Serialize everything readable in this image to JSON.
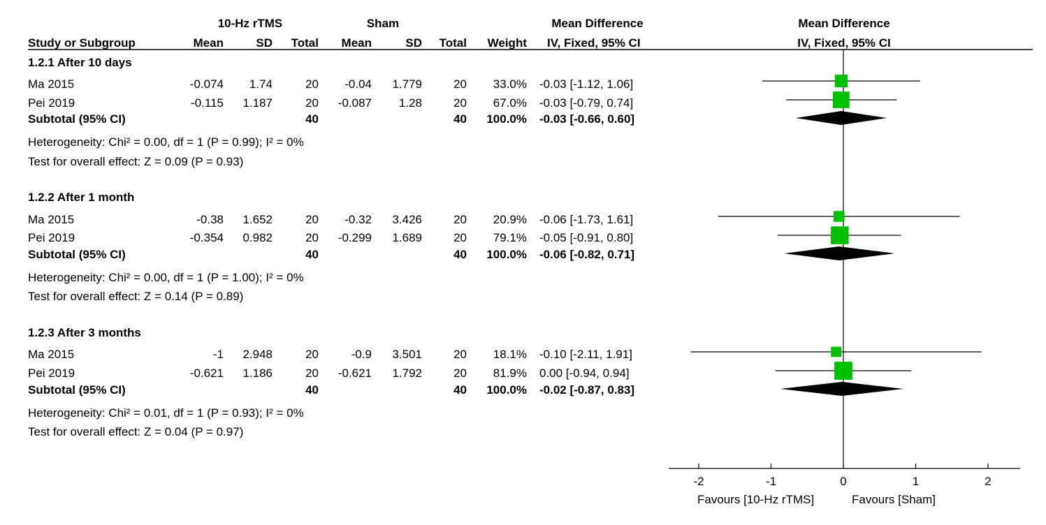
{
  "header": {
    "group1": "10-Hz rTMS",
    "group2": "Sham",
    "md_label": "Mean Difference",
    "md_method": "IV, Fixed, 95% CI",
    "plot_label": "Mean Difference",
    "plot_method": "IV, Fixed, 95% CI",
    "columns": [
      "Study or Subgroup",
      "Mean",
      "SD",
      "Total",
      "Mean",
      "SD",
      "Total",
      "Weight"
    ]
  },
  "subgroups": [
    {
      "title": "1.2.1 After 10 days",
      "studies": [
        {
          "name": "Ma 2015",
          "mean1": "-0.074",
          "sd1": "1.74",
          "n1": "20",
          "mean2": "-0.04",
          "sd2": "1.779",
          "n2": "20",
          "weight": "33.0%",
          "ci": "-0.03 [-1.12, 1.06]"
        },
        {
          "name": "Pei 2019",
          "mean1": "-0.115",
          "sd1": "1.187",
          "n1": "20",
          "mean2": "-0.087",
          "sd2": "1.28",
          "n2": "20",
          "weight": "67.0%",
          "ci": "-0.03 [-0.79, 0.74]"
        }
      ],
      "subtotal": {
        "label": "Subtotal (95% CI)",
        "n1": "40",
        "n2": "40",
        "weight": "100.0%",
        "ci": "-0.03 [-0.66, 0.60]"
      },
      "heterogeneity": "Heterogeneity: Chi² = 0.00, df = 1 (P = 0.99); I² = 0%",
      "overall": "Test for overall effect: Z = 0.09 (P = 0.93)"
    },
    {
      "title": "1.2.2 After 1 month",
      "studies": [
        {
          "name": "Ma 2015",
          "mean1": "-0.38",
          "sd1": "1.652",
          "n1": "20",
          "mean2": "-0.32",
          "sd2": "3.426",
          "n2": "20",
          "weight": "20.9%",
          "ci": "-0.06 [-1.73, 1.61]"
        },
        {
          "name": "Pei 2019",
          "mean1": "-0.354",
          "sd1": "0.982",
          "n1": "20",
          "mean2": "-0.299",
          "sd2": "1.689",
          "n2": "20",
          "weight": "79.1%",
          "ci": "-0.05 [-0.91, 0.80]"
        }
      ],
      "subtotal": {
        "label": "Subtotal (95% CI)",
        "n1": "40",
        "n2": "40",
        "weight": "100.0%",
        "ci": "-0.06 [-0.82, 0.71]"
      },
      "heterogeneity": "Heterogeneity: Chi² = 0.00, df = 1 (P = 1.00); I² = 0%",
      "overall": "Test for overall effect: Z = 0.14 (P = 0.89)"
    },
    {
      "title": "1.2.3 After 3 months",
      "studies": [
        {
          "name": "Ma 2015",
          "mean1": "-1",
          "sd1": "2.948",
          "n1": "20",
          "mean2": "-0.9",
          "sd2": "3.501",
          "n2": "20",
          "weight": "18.1%",
          "ci": "-0.10 [-2.11, 1.91]"
        },
        {
          "name": "Pei 2019",
          "mean1": "-0.621",
          "sd1": "1.186",
          "n1": "20",
          "mean2": "-0.621",
          "sd2": "1.792",
          "n2": "20",
          "weight": "81.9%",
          "ci": "0.00 [-0.94, 0.94]"
        }
      ],
      "subtotal": {
        "label": "Subtotal (95% CI)",
        "n1": "40",
        "n2": "40",
        "weight": "100.0%",
        "ci": "-0.02 [-0.87, 0.83]"
      },
      "heterogeneity": "Heterogeneity: Chi² = 0.01, df = 1 (P = 0.93); I² = 0%",
      "overall": "Test for overall effect: Z = 0.04 (P = 0.97)"
    }
  ],
  "chart_data": {
    "type": "forest",
    "xlim": [
      -2,
      2
    ],
    "ticks": [
      -2,
      -1,
      0,
      1,
      2
    ],
    "tick_labels": [
      "-2",
      "-1",
      "0",
      "1",
      "2"
    ],
    "favours_left": "Favours [10-Hz rTMS]",
    "favours_right": "Favours [Sham]",
    "colors": {
      "study_marker": "#00c000",
      "diamond": "#000000",
      "line": "#000000"
    },
    "studies": [
      {
        "group": 0,
        "row": 0,
        "est": -0.03,
        "lo": -1.12,
        "hi": 1.06,
        "weight": 33.0
      },
      {
        "group": 0,
        "row": 1,
        "est": -0.03,
        "lo": -0.79,
        "hi": 0.74,
        "weight": 67.0
      },
      {
        "group": 1,
        "row": 0,
        "est": -0.06,
        "lo": -1.73,
        "hi": 1.61,
        "weight": 20.9
      },
      {
        "group": 1,
        "row": 1,
        "est": -0.05,
        "lo": -0.91,
        "hi": 0.8,
        "weight": 79.1
      },
      {
        "group": 2,
        "row": 0,
        "est": -0.1,
        "lo": -2.11,
        "hi": 1.91,
        "weight": 18.1
      },
      {
        "group": 2,
        "row": 1,
        "est": 0.0,
        "lo": -0.94,
        "hi": 0.94,
        "weight": 81.9
      }
    ],
    "subtotals": [
      {
        "group": 0,
        "est": -0.03,
        "lo": -0.66,
        "hi": 0.6
      },
      {
        "group": 1,
        "est": -0.06,
        "lo": -0.82,
        "hi": 0.71
      },
      {
        "group": 2,
        "est": -0.02,
        "lo": -0.87,
        "hi": 0.83
      }
    ]
  }
}
